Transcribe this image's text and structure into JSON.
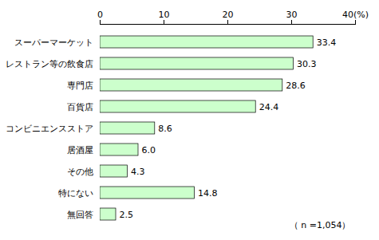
{
  "chart_data": {
    "type": "bar",
    "orientation": "horizontal",
    "categories": [
      "無回答",
      "特にない",
      "その他",
      "居酒屋",
      "コンビニエンスストア",
      "百貨店",
      "専門店",
      "レストラン等の飲食店",
      "スーパーマーケット"
    ],
    "values": [
      2.5,
      14.8,
      4.3,
      6.0,
      8.6,
      24.4,
      28.6,
      30.3,
      33.4
    ],
    "value_labels": [
      "2.5",
      "14.8",
      "4.3",
      "6.0",
      "8.6",
      "24.4",
      "28.6",
      "30.3",
      "33.4"
    ],
    "data_labels": true,
    "color": "#ccffcc",
    "xlim": [
      0,
      40
    ],
    "xticks": [
      0,
      10,
      20,
      30,
      {
        "value": 40,
        "label": "40(%)"
      }
    ],
    "annotations": [
      "（ n =1,054）"
    ],
    "grid": false
  }
}
